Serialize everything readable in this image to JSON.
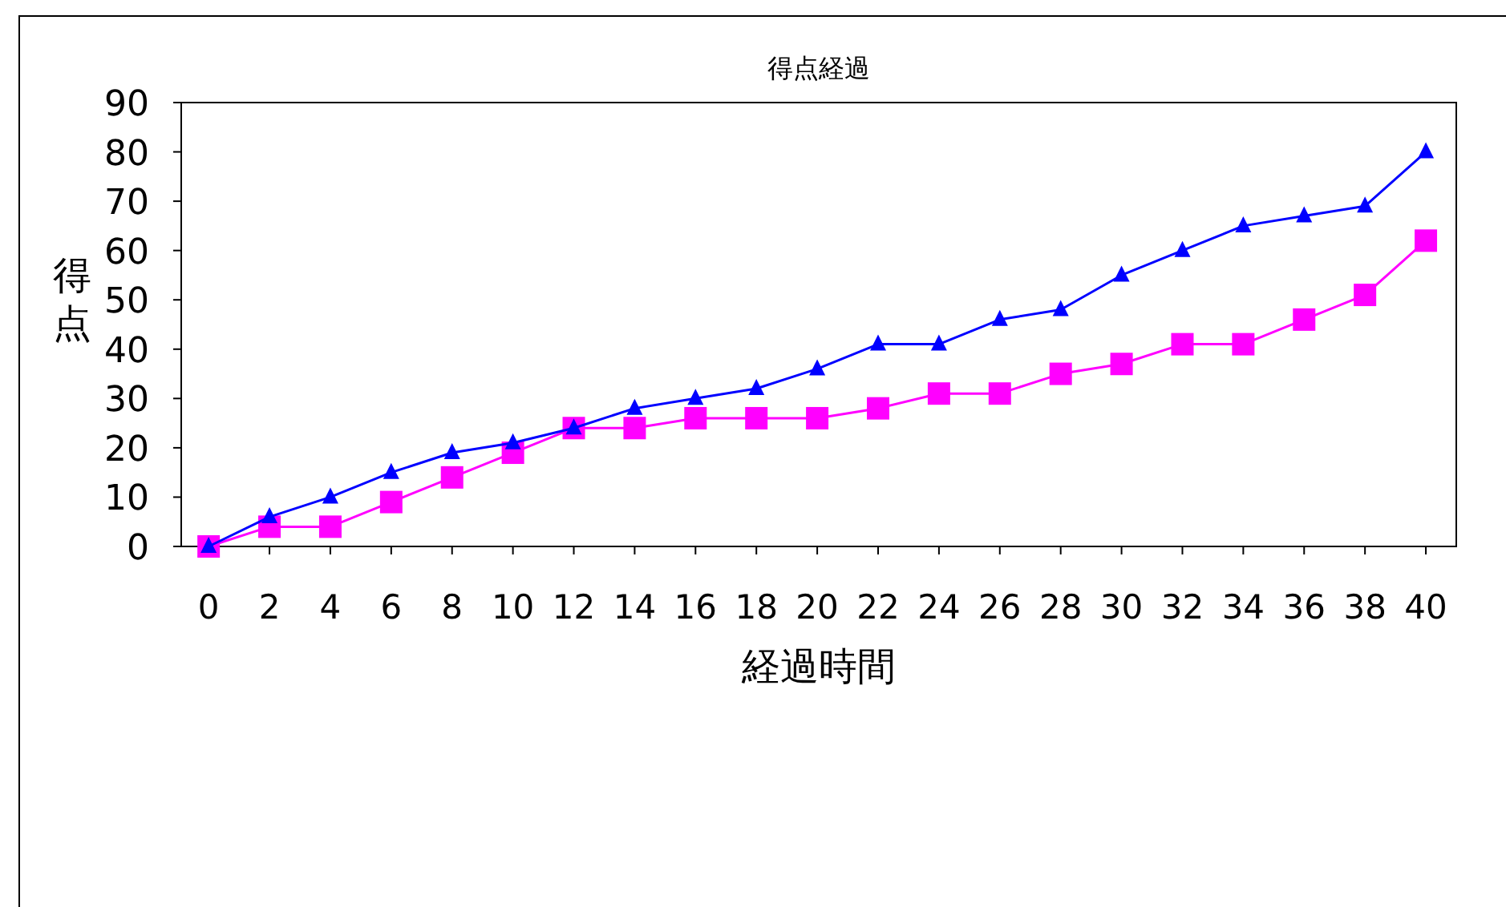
{
  "chart_data": {
    "type": "line",
    "title": "得点経過",
    "xlabel": "経過時間",
    "ylabel": "得点",
    "x": [
      0,
      2,
      4,
      6,
      8,
      10,
      12,
      14,
      16,
      18,
      20,
      22,
      24,
      26,
      28,
      30,
      32,
      34,
      36,
      38,
      40
    ],
    "xlim": [
      -0.9,
      41
    ],
    "xticks": [
      0,
      2,
      4,
      6,
      8,
      10,
      12,
      14,
      16,
      18,
      20,
      22,
      24,
      26,
      28,
      30,
      32,
      34,
      36,
      38,
      40
    ],
    "ylim": [
      0,
      90
    ],
    "yticks": [
      0,
      10,
      20,
      30,
      40,
      50,
      60,
      70,
      80,
      90
    ],
    "grid": false,
    "series": [
      {
        "color": "#ff00ff",
        "marker": "square",
        "values": [
          0,
          4,
          4,
          9,
          14,
          19,
          24,
          24,
          26,
          26,
          26,
          28,
          31,
          31,
          35,
          37,
          41,
          41,
          46,
          51,
          62
        ]
      },
      {
        "color": "#0000ff",
        "marker": "triangle",
        "values": [
          0,
          6,
          10,
          15,
          19,
          21,
          24,
          28,
          30,
          32,
          36,
          41,
          41,
          46,
          48,
          55,
          60,
          65,
          67,
          69,
          80
        ]
      }
    ]
  }
}
